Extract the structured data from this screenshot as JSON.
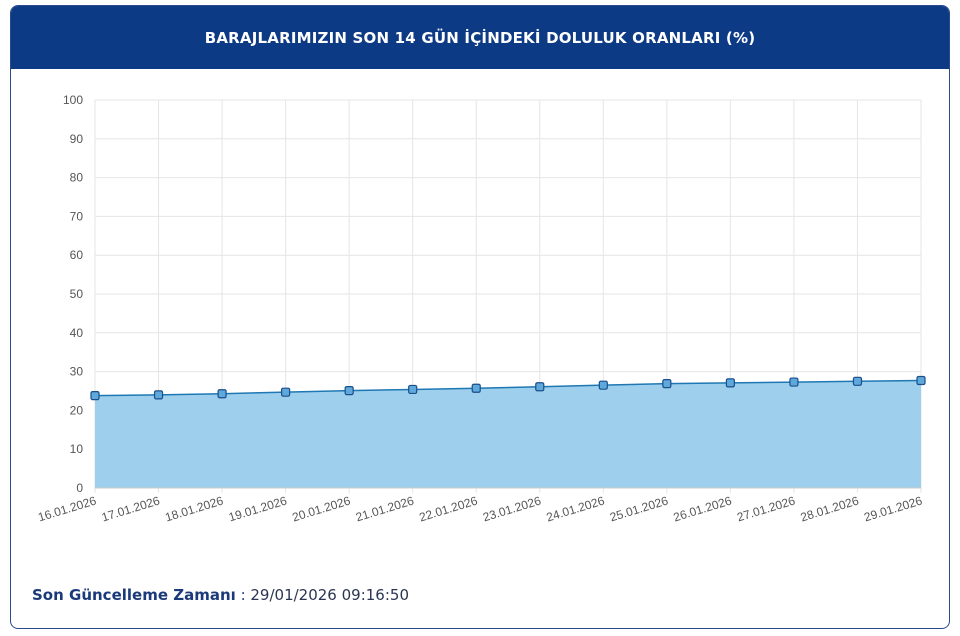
{
  "header": {
    "title": "BARAJLARIMIZIN SON 14 GÜN İÇİNDEKİ DOLULUK ORANLARI (%)"
  },
  "footer": {
    "label": "Son Güncelleme Zamanı",
    "separator": " : ",
    "value": "29/01/2026 09:16:50"
  },
  "chart_data": {
    "type": "area",
    "title": "BARAJLARIMIZIN SON 14 GÜN İÇİNDEKİ DOLULUK ORANLARI (%)",
    "xlabel": "",
    "ylabel": "",
    "ylim": [
      0,
      100
    ],
    "yticks": [
      0,
      10,
      20,
      30,
      40,
      50,
      60,
      70,
      80,
      90,
      100
    ],
    "grid": true,
    "categories": [
      "16.01.2026",
      "17.01.2026",
      "18.01.2026",
      "19.01.2026",
      "20.01.2026",
      "21.01.2026",
      "22.01.2026",
      "23.01.2026",
      "24.01.2026",
      "25.01.2026",
      "26.01.2026",
      "27.01.2026",
      "28.01.2026",
      "29.01.2026"
    ],
    "series": [
      {
        "values": [
          23.8,
          24.0,
          24.3,
          24.7,
          25.1,
          25.4,
          25.7,
          26.1,
          26.5,
          26.9,
          27.1,
          27.3,
          27.5,
          27.7
        ]
      }
    ],
    "colors": {
      "line": "#1f78b4",
      "fill": "#9ecfec",
      "marker": "#5fa8dc",
      "marker_stroke": "#1a4f8a",
      "grid": "#e6e6e6",
      "axis_text": "#555555"
    }
  }
}
